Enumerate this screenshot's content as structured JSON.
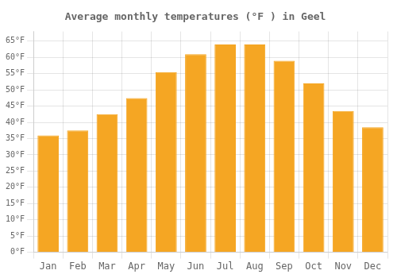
{
  "chart_data": {
    "type": "bar",
    "title": "Average monthly temperatures (°F ) in Geel",
    "categories": [
      "Jan",
      "Feb",
      "Mar",
      "Apr",
      "May",
      "Jun",
      "Jul",
      "Aug",
      "Sep",
      "Oct",
      "Nov",
      "Dec"
    ],
    "values": [
      36,
      37.5,
      42.5,
      47.5,
      55.5,
      61,
      64,
      64,
      59,
      52,
      43.5,
      38.5
    ],
    "color": "#F5A623",
    "ylim": [
      0,
      68
    ],
    "yticks": [
      {
        "value": 0,
        "label": "0°F"
      },
      {
        "value": 5,
        "label": "5°F"
      },
      {
        "value": 10,
        "label": "10°F"
      },
      {
        "value": 15,
        "label": "15°F"
      },
      {
        "value": 20,
        "label": "20°F"
      },
      {
        "value": 25,
        "label": "25°F"
      },
      {
        "value": 30,
        "label": "30°F"
      },
      {
        "value": 35,
        "label": "35°F"
      },
      {
        "value": 40,
        "label": "40°F"
      },
      {
        "value": 45,
        "label": "45°F"
      },
      {
        "value": 50,
        "label": "50°F"
      },
      {
        "value": 55,
        "label": "55°F"
      },
      {
        "value": 60,
        "label": "60°F"
      },
      {
        "value": 65,
        "label": "65°F"
      }
    ],
    "grid": true
  }
}
